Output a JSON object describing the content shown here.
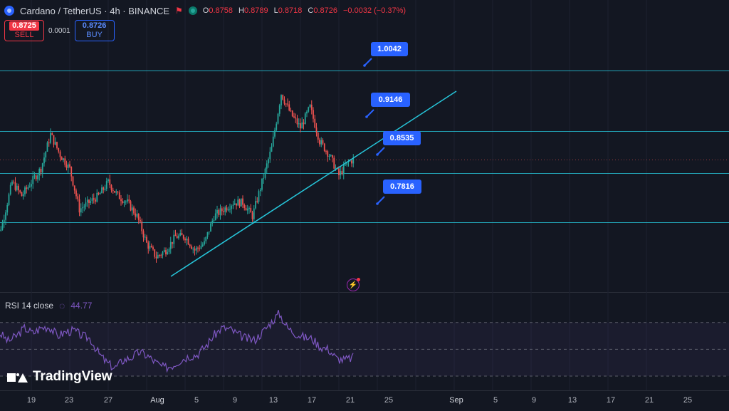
{
  "header": {
    "symbol": "Cardano / TetherUS · 4h · BINANCE",
    "o_label": "O",
    "o": "0.8758",
    "h_label": "H",
    "h": "0.8789",
    "l_label": "L",
    "l": "0.8718",
    "c_label": "C",
    "c": "0.8726",
    "change": "−0.0032 (−0.37%)",
    "icons": [
      "cardano-icon",
      "flag-icon",
      "status-icon"
    ]
  },
  "trade": {
    "sell_price": "0.8725",
    "sell_label": "SELL",
    "spread": "0.0001",
    "buy_price": "0.8726",
    "buy_label": "BUY"
  },
  "colors": {
    "up": "#26a69a",
    "down": "#ef5350",
    "level": "#26c6da",
    "label_bg": "#2962ff",
    "rsi": "#7e57c2"
  },
  "rsi": {
    "label": "RSI 14 close",
    "value": "44.77"
  },
  "branding": {
    "logo_text": "TradingView"
  },
  "x_ticks": [
    "19",
    "23",
    "27",
    "Aug",
    "5",
    "9",
    "13",
    "17",
    "21",
    "25",
    "Sep",
    "5",
    "9",
    "13",
    "17",
    "21",
    "25"
  ],
  "chart_data": {
    "type": "candlestick",
    "symbol": "ADA/USDT",
    "timeframe": "4h",
    "price_range": [
      0.7,
      1.02
    ],
    "levels": [
      1.0042,
      0.9146,
      0.8535,
      0.7816
    ],
    "level_labels": [
      "1.0042",
      "0.9146",
      "0.8535",
      "0.7816"
    ],
    "trendline": [
      [
        "Aug 1",
        0.71
      ],
      [
        "Aug 25",
        0.86
      ]
    ],
    "close_path": [
      [
        "Jul 15",
        0.74
      ],
      [
        "Jul 16",
        0.78
      ],
      [
        "Jul 17",
        0.84
      ],
      [
        "Jul 18",
        0.82
      ],
      [
        "Jul 19",
        0.84
      ],
      [
        "Jul 20",
        0.86
      ],
      [
        "Jul 21",
        0.91
      ],
      [
        "Jul 22",
        0.88
      ],
      [
        "Jul 23",
        0.86
      ],
      [
        "Jul 24",
        0.8
      ],
      [
        "Jul 25",
        0.81
      ],
      [
        "Jul 26",
        0.82
      ],
      [
        "Jul 27",
        0.84
      ],
      [
        "Jul 28",
        0.82
      ],
      [
        "Jul 29",
        0.81
      ],
      [
        "Jul 30",
        0.79
      ],
      [
        "Jul 31",
        0.75
      ],
      [
        "Aug 1",
        0.73
      ],
      [
        "Aug 2",
        0.74
      ],
      [
        "Aug 3",
        0.76
      ],
      [
        "Aug 4",
        0.76
      ],
      [
        "Aug 5",
        0.74
      ],
      [
        "Aug 6",
        0.75
      ],
      [
        "Aug 7",
        0.79
      ],
      [
        "Aug 8",
        0.8
      ],
      [
        "Aug 9",
        0.81
      ],
      [
        "Aug 10",
        0.81
      ],
      [
        "Aug 11",
        0.79
      ],
      [
        "Aug 12",
        0.84
      ],
      [
        "Aug 13",
        0.89
      ],
      [
        "Aug 14",
        0.97
      ],
      [
        "Aug 15",
        0.94
      ],
      [
        "Aug 16",
        0.92
      ],
      [
        "Aug 17",
        0.95
      ],
      [
        "Aug 18",
        0.9
      ],
      [
        "Aug 19",
        0.88
      ],
      [
        "Aug 20",
        0.85
      ],
      [
        "Aug 21",
        0.87
      ],
      [
        "Aug 21.5",
        0.8726
      ]
    ],
    "rsi": {
      "period": 14,
      "bands": [
        70,
        50,
        30
      ],
      "last": 44.77,
      "values": [
        62,
        56,
        60,
        66,
        62,
        66,
        67,
        60,
        63,
        64,
        60,
        58,
        47,
        40,
        36,
        42,
        44,
        48,
        45,
        40,
        36,
        38,
        42,
        45,
        46,
        52,
        60,
        66,
        65,
        61,
        58,
        57,
        63,
        70,
        77,
        66,
        62,
        59,
        58,
        52,
        50,
        43,
        42,
        44
      ]
    }
  }
}
